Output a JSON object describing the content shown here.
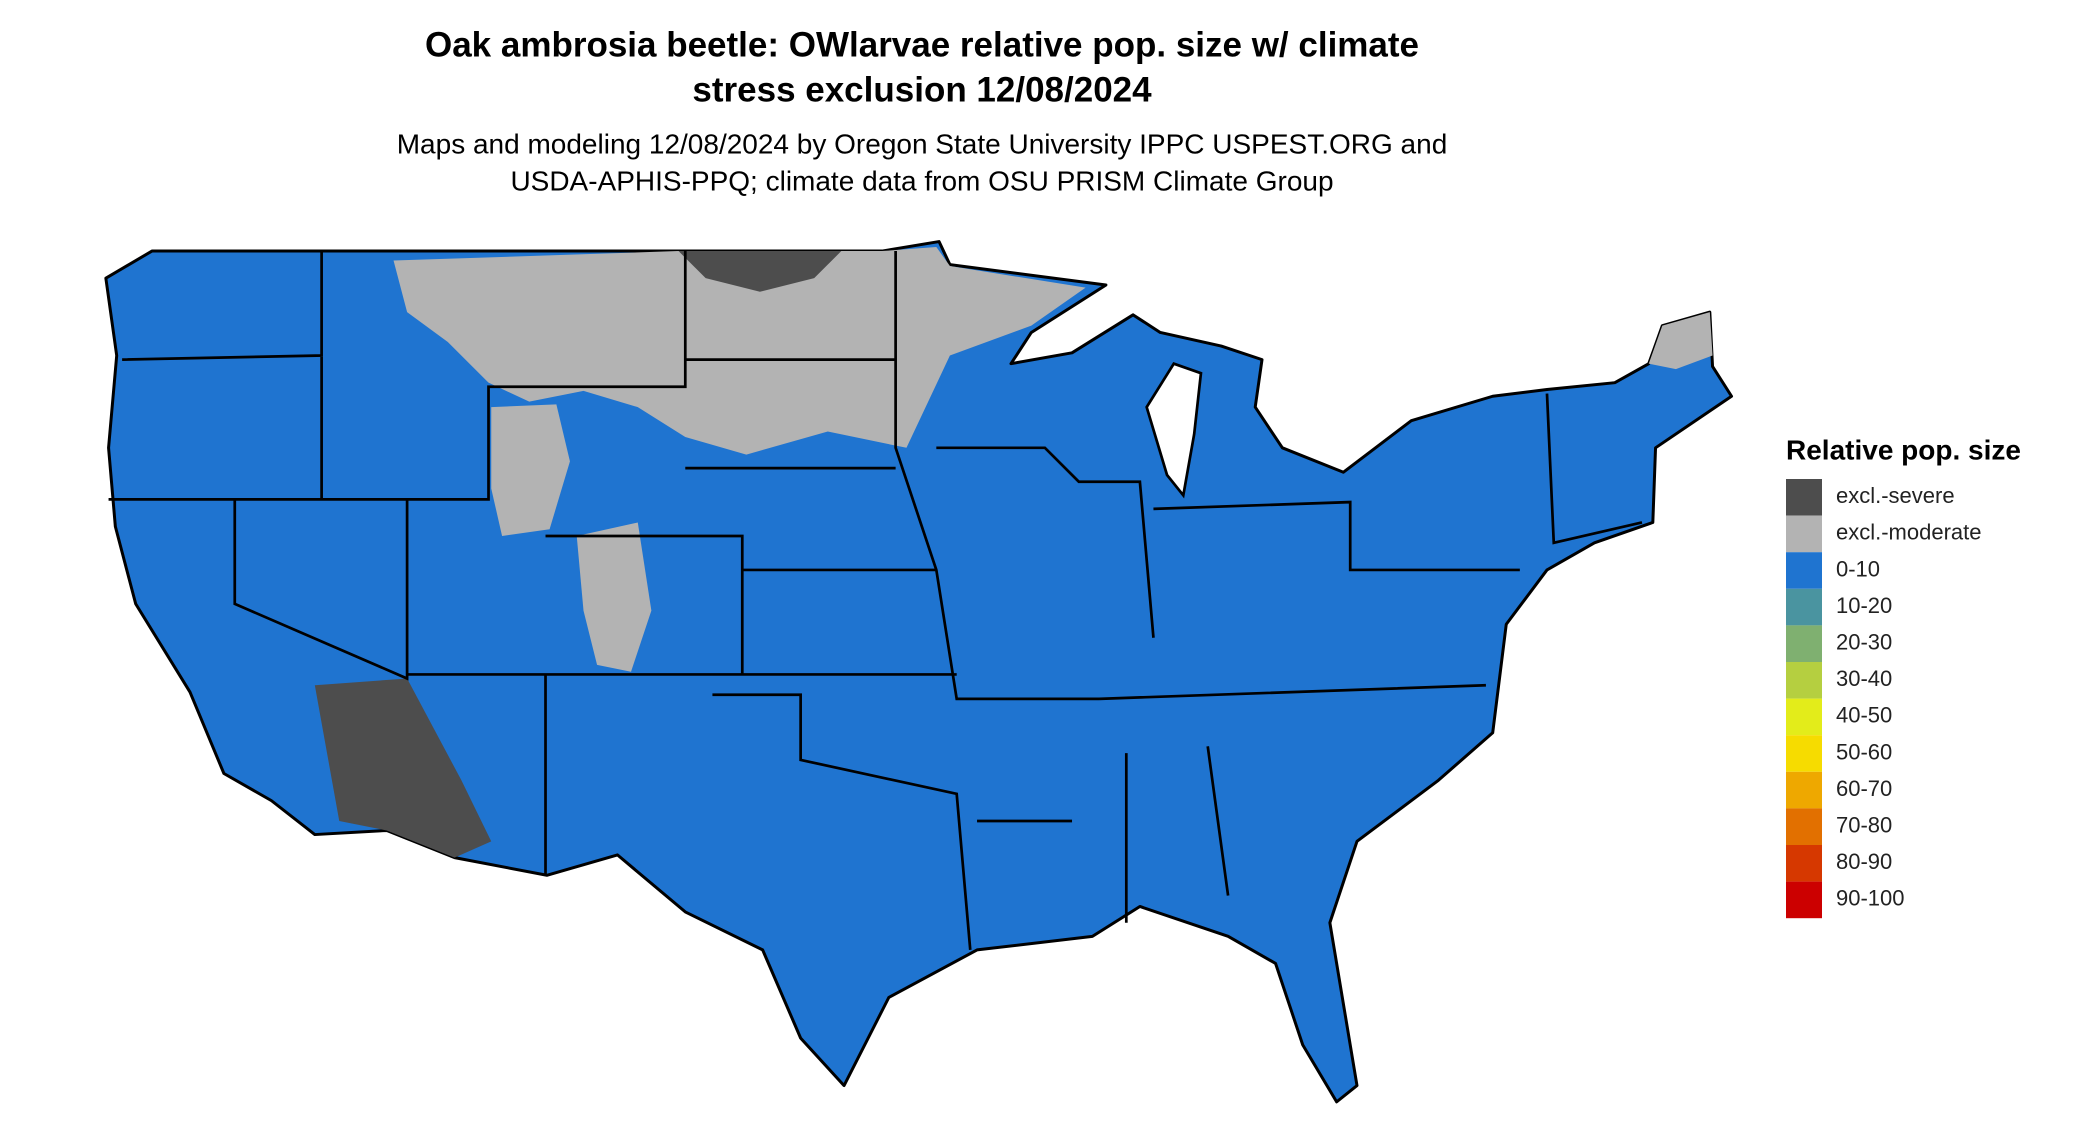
{
  "header": {
    "title_lines": [
      "Oak ambrosia beetle: OWlarvae relative pop. size w/ climate",
      "stress exclusion 12/08/2024"
    ],
    "subtitle_lines": [
      "Maps and modeling 12/08/2024 by Oregon State University IPPC USPEST.ORG and",
      "USDA-APHIS-PPQ; climate data from OSU PRISM Climate Group"
    ]
  },
  "legend": {
    "title": "Relative pop. size",
    "items": [
      {
        "label": "excl.-severe",
        "color": "#4d4d4d"
      },
      {
        "label": "excl.-moderate",
        "color": "#b3b3b3"
      },
      {
        "label": "0-10",
        "color": "#1f74d0"
      },
      {
        "label": "10-20",
        "color": "#4a94a0"
      },
      {
        "label": "20-30",
        "color": "#7fb070"
      },
      {
        "label": "30-40",
        "color": "#b5cf40"
      },
      {
        "label": "40-50",
        "color": "#e3ec1a"
      },
      {
        "label": "50-60",
        "color": "#f6dc00"
      },
      {
        "label": "60-70",
        "color": "#eea800"
      },
      {
        "label": "70-80",
        "color": "#e27000"
      },
      {
        "label": "80-90",
        "color": "#d63800"
      },
      {
        "label": "90-100",
        "color": "#cc0000"
      }
    ]
  }
}
